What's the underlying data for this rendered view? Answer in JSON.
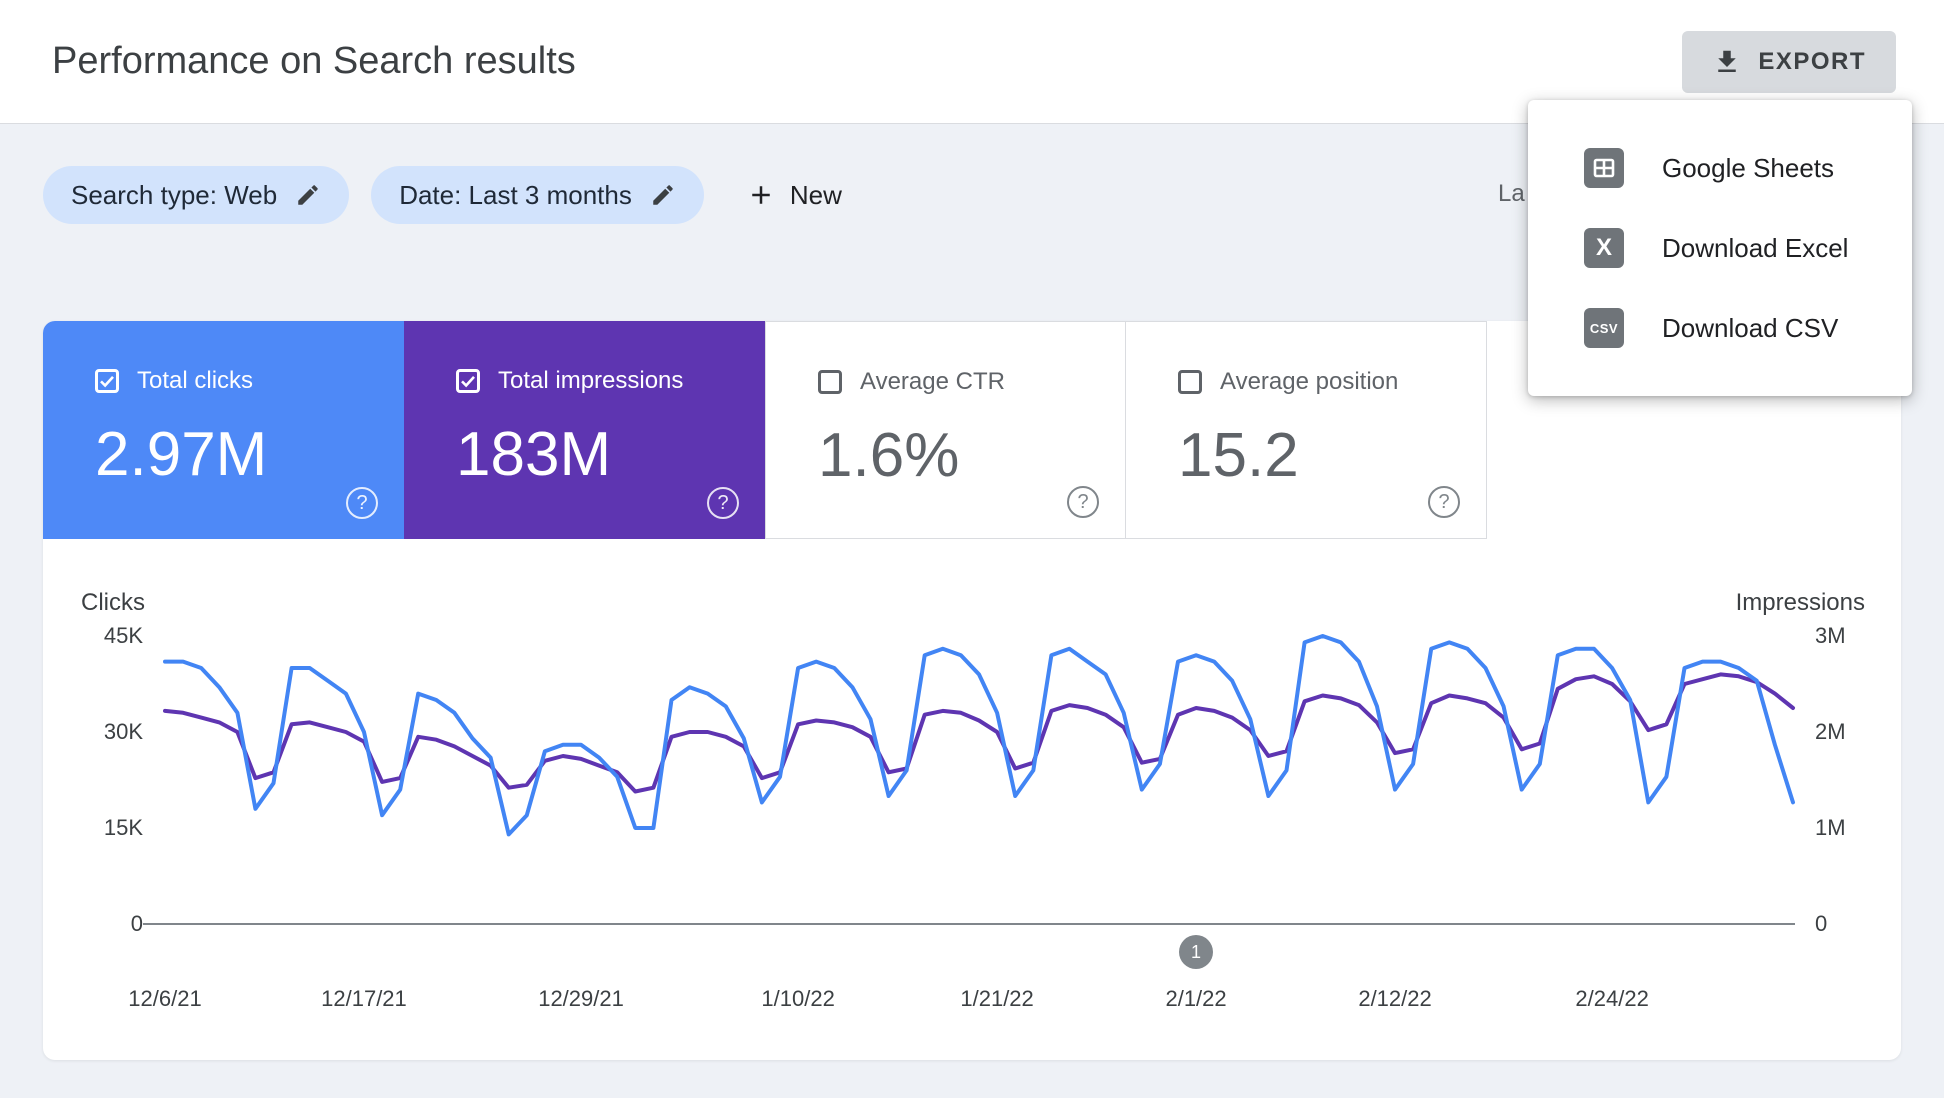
{
  "header": {
    "title": "Performance on Search results",
    "export_label": "EXPORT"
  },
  "filters": {
    "search_type": "Search type: Web",
    "date_range": "Date: Last 3 months",
    "new_label": "New",
    "last_updated_partial": "La"
  },
  "export_menu": {
    "items": [
      {
        "icon": "google-sheets-icon",
        "label": "Google Sheets"
      },
      {
        "icon": "excel-icon",
        "label": "Download Excel",
        "glyph": "X"
      },
      {
        "icon": "csv-icon",
        "label": "Download CSV",
        "glyph": "CSV"
      }
    ]
  },
  "metrics": [
    {
      "label": "Total clicks",
      "value": "2.97M",
      "checked": true,
      "color": "#4e89f7"
    },
    {
      "label": "Total impressions",
      "value": "183M",
      "checked": true,
      "color": "#5e35b1"
    },
    {
      "label": "Average CTR",
      "value": "1.6%",
      "checked": false
    },
    {
      "label": "Average position",
      "value": "15.2",
      "checked": false
    }
  ],
  "help_glyph": "?",
  "chart_data": {
    "type": "line",
    "grid": "baseline-only",
    "days_total": 91,
    "date_start": "12/6/21",
    "axis_left": {
      "title": "Clicks",
      "unit": "K",
      "max": 45,
      "ticks": [
        {
          "v": 45,
          "label": "45K"
        },
        {
          "v": 30,
          "label": "30K"
        },
        {
          "v": 15,
          "label": "15K"
        },
        {
          "v": 0,
          "label": "0"
        }
      ]
    },
    "axis_right": {
      "title": "Impressions",
      "unit": "M",
      "max": 3,
      "ticks": [
        {
          "v": 3,
          "label": "3M"
        },
        {
          "v": 2,
          "label": "2M"
        },
        {
          "v": 1,
          "label": "1M"
        },
        {
          "v": 0,
          "label": "0"
        }
      ]
    },
    "x_tick_labels": [
      "12/6/21",
      "12/17/21",
      "12/29/21",
      "1/10/22",
      "1/21/22",
      "2/1/22",
      "2/12/22",
      "2/24/22"
    ],
    "x_tick_day_index": [
      0,
      11,
      23,
      35,
      46,
      57,
      68,
      80
    ],
    "series": [
      {
        "name": "Total clicks",
        "axis": "left",
        "units": "thousands",
        "color": "#4285f4",
        "values": [
          41,
          41,
          40,
          37,
          33,
          18,
          22,
          40,
          40,
          38,
          36,
          30,
          17,
          21,
          36,
          35,
          33,
          29,
          26,
          14,
          17,
          27,
          28,
          28,
          26,
          23,
          15,
          15,
          35,
          37,
          36,
          34,
          29,
          19,
          23,
          40,
          41,
          40,
          37,
          32,
          20,
          24,
          42,
          43,
          42,
          39,
          33,
          20,
          24,
          42,
          43,
          41,
          39,
          33,
          21,
          25,
          41,
          42,
          41,
          38,
          32,
          20,
          24,
          44,
          45,
          44,
          41,
          34,
          21,
          25,
          43,
          44,
          43,
          40,
          34,
          21,
          25,
          42,
          43,
          43,
          40,
          35,
          19,
          23,
          40,
          41,
          41,
          40,
          38,
          28,
          19
        ]
      },
      {
        "name": "Total impressions",
        "axis": "right",
        "units": "millions",
        "color": "#5e35b1",
        "values": [
          2.22,
          2.2,
          2.15,
          2.1,
          2.0,
          1.52,
          1.58,
          2.08,
          2.1,
          2.05,
          2.0,
          1.9,
          1.48,
          1.52,
          1.95,
          1.92,
          1.85,
          1.75,
          1.65,
          1.42,
          1.45,
          1.7,
          1.75,
          1.72,
          1.65,
          1.58,
          1.38,
          1.42,
          1.95,
          2.0,
          2.0,
          1.95,
          1.85,
          1.52,
          1.58,
          2.08,
          2.12,
          2.1,
          2.05,
          1.95,
          1.58,
          1.62,
          2.18,
          2.22,
          2.2,
          2.12,
          2.0,
          1.62,
          1.68,
          2.22,
          2.28,
          2.25,
          2.18,
          2.05,
          1.68,
          1.72,
          2.18,
          2.25,
          2.22,
          2.15,
          2.02,
          1.75,
          1.8,
          2.32,
          2.38,
          2.35,
          2.28,
          2.1,
          1.78,
          1.82,
          2.3,
          2.38,
          2.35,
          2.3,
          2.15,
          1.82,
          1.88,
          2.45,
          2.55,
          2.58,
          2.5,
          2.32,
          2.02,
          2.08,
          2.5,
          2.55,
          2.6,
          2.58,
          2.52,
          2.4,
          2.25
        ]
      }
    ],
    "pagination": {
      "label": "1",
      "day_index": 57
    }
  }
}
